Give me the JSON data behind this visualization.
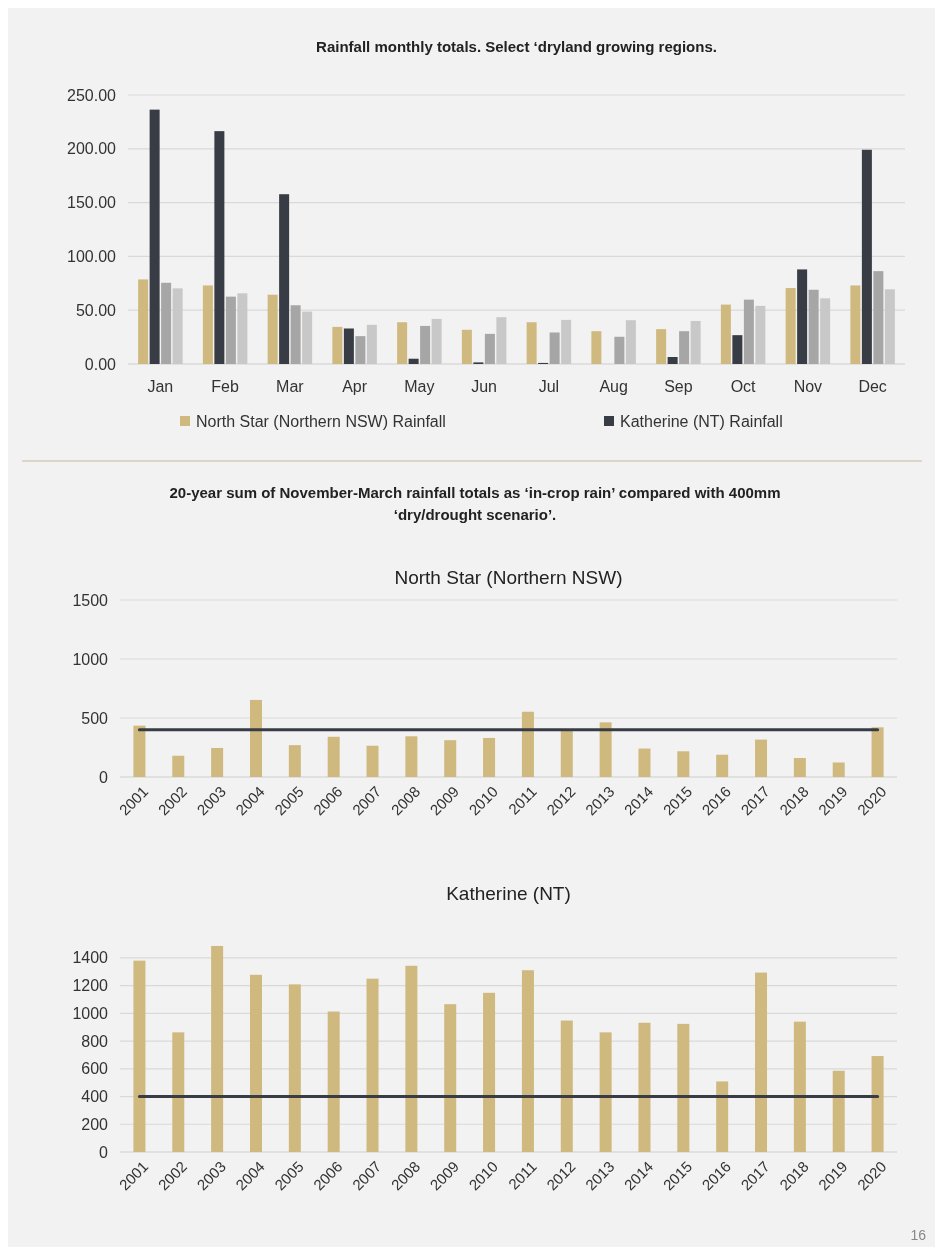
{
  "chart_data": [
    {
      "type": "bar",
      "title": "Rainfall monthly totals. Select ‘dryland growing regions.",
      "categories": [
        "Jan",
        "Feb",
        "Mar",
        "Apr",
        "May",
        "Jun",
        "Jul",
        "Aug",
        "Sep",
        "Oct",
        "Nov",
        "Dec"
      ],
      "series": [
        {
          "name": "North Star (Northern NSW) Rainfall",
          "color": "#cfb97f",
          "values": [
            78.6,
            73,
            64.4,
            34.5,
            38.8,
            31.8,
            38.8,
            30.5,
            32.4,
            55.2,
            70.6,
            73
          ]
        },
        {
          "name": "Katherine (NT) Rainfall",
          "color": "#383c44",
          "values": [
            236.4,
            216.4,
            157.8,
            33,
            4.9,
            1.5,
            1,
            null,
            6.5,
            26.8,
            87.9,
            199.1
          ]
        },
        {
          "color": "#a6a6a6",
          "values": [
            75.5,
            62.6,
            54.6,
            25.9,
            35.4,
            28,
            29.3,
            25.3,
            30.5,
            59.8,
            69,
            86.3
          ]
        },
        {
          "color": "#c8c8c8",
          "values": [
            70.3,
            65.7,
            48.7,
            36.4,
            41.9,
            43.5,
            41,
            40.7,
            40,
            54,
            61,
            69.4
          ]
        }
      ],
      "ylim": [
        0,
        250
      ],
      "yticks": [
        {
          "value": 0,
          "label": "0.00"
        },
        {
          "value": 50,
          "label": "50.00"
        },
        {
          "value": 100,
          "label": "100.00"
        },
        {
          "value": 150,
          "label": "150.00"
        },
        {
          "value": 200,
          "label": "200.00"
        },
        {
          "value": 250,
          "label": "250.00"
        }
      ],
      "grid": "y",
      "legend": "bottom"
    },
    {
      "type": "bar",
      "title": "North Star (Northern NSW)",
      "annotations": [
        "20-year sum of November-March rainfall totals as ‘in-crop rain’ compared with 400mm ‘dry/drought scenario’."
      ],
      "categories": [
        "2001",
        "2002",
        "2003",
        "2004",
        "2005",
        "2006",
        "2007",
        "2008",
        "2009",
        "2010",
        "2011",
        "2012",
        "2013",
        "2014",
        "2015",
        "2016",
        "2017",
        "2018",
        "2019",
        "2020"
      ],
      "series": [
        {
          "color": "#cfb97f",
          "values": [
            435,
            180,
            246,
            653,
            270,
            341,
            265,
            345,
            312,
            331,
            553,
            395,
            463,
            241,
            218,
            189,
            317,
            161,
            123,
            421
          ]
        }
      ],
      "ylim": [
        0,
        1500
      ],
      "yticks": [
        0,
        500,
        1000,
        1500
      ],
      "grid": "y",
      "ref_lines": [
        {
          "axis": "y",
          "value": 400,
          "color": "#383c44"
        }
      ]
    },
    {
      "type": "bar",
      "title": "Katherine (NT)",
      "annotations": [
        "16"
      ],
      "categories": [
        "2001",
        "2002",
        "2003",
        "2004",
        "2005",
        "2006",
        "2007",
        "2008",
        "2009",
        "2010",
        "2011",
        "2012",
        "2013",
        "2014",
        "2015",
        "2016",
        "2017",
        "2018",
        "2019",
        "2020"
      ],
      "series": [
        {
          "color": "#cfb97f",
          "values": [
            1380,
            863,
            1486,
            1278,
            1209,
            1013,
            1250,
            1343,
            1066,
            1148,
            1311,
            948,
            863,
            932,
            924,
            509,
            1294,
            940,
            586,
            692
          ]
        }
      ],
      "ylim": [
        0,
        1500
      ],
      "yticks": [
        0,
        200,
        400,
        600,
        800,
        1000,
        1200,
        1400
      ],
      "grid": "y",
      "ref_lines": [
        {
          "axis": "y",
          "value": 400,
          "color": "#383c44"
        }
      ]
    }
  ]
}
